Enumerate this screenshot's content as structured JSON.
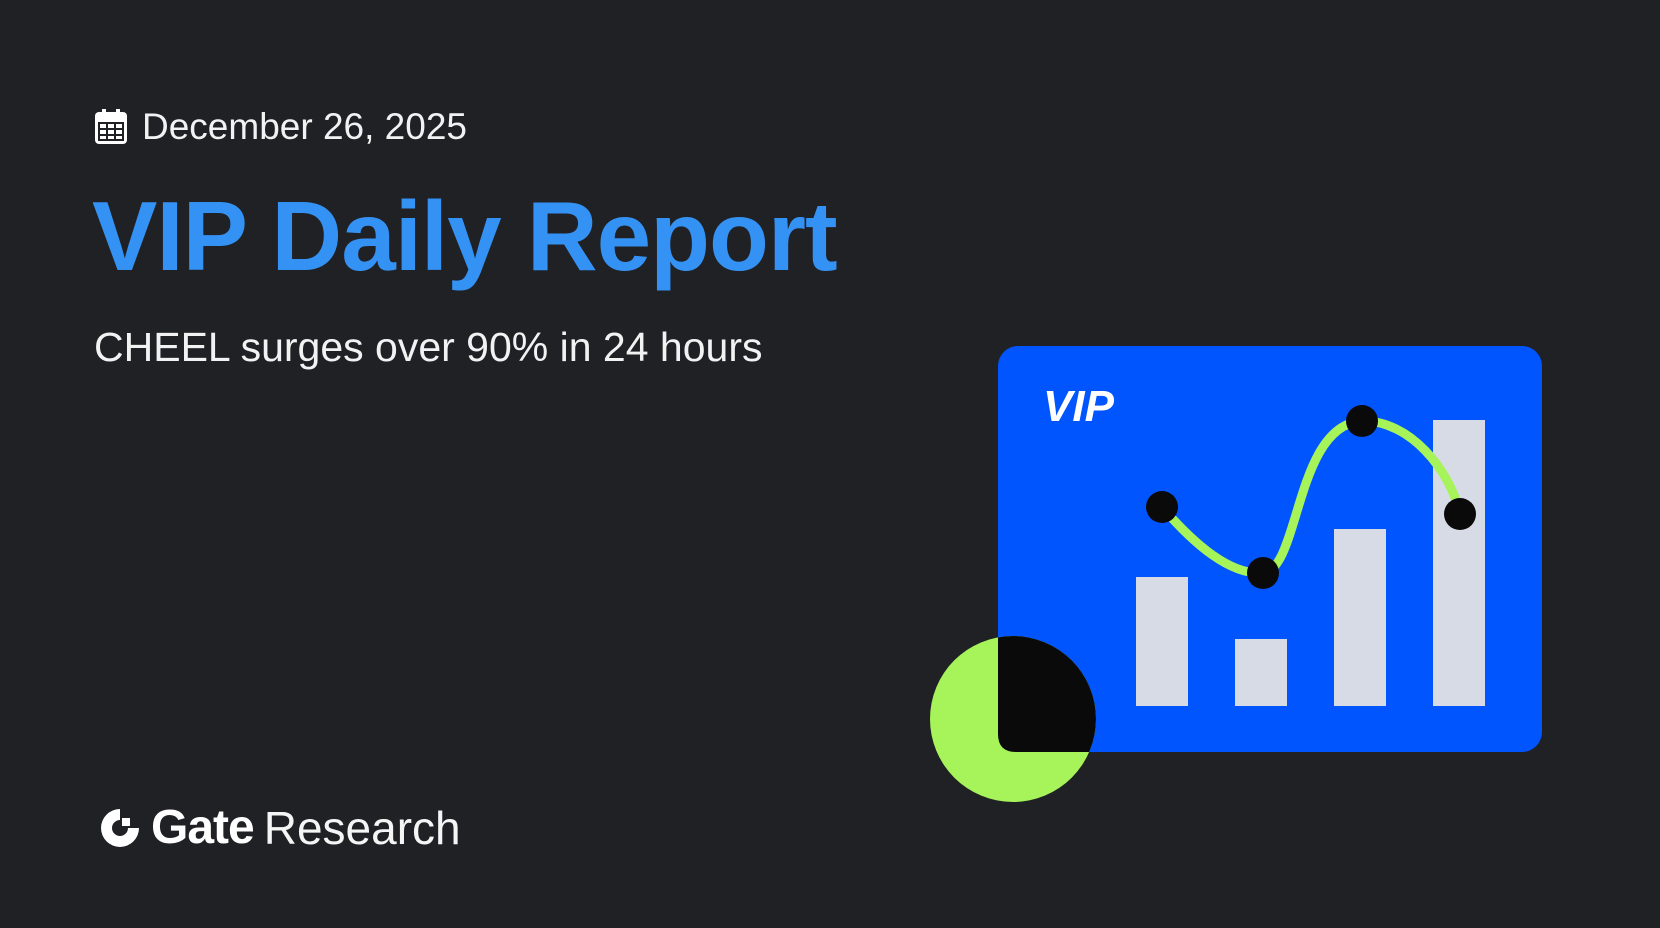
{
  "header": {
    "date": "December 26, 2025",
    "date_icon": "calendar-icon",
    "title": "VIP Daily Report",
    "subtitle": "CHEEL surges over 90% in 24 hours"
  },
  "illustration": {
    "badge": "VIP",
    "colors": {
      "card": "#0055ff",
      "accent": "#a6f35a",
      "bars": "#d7dbe6",
      "dots": "#0a0a0a"
    }
  },
  "brand": {
    "logo": "Gate",
    "suffix": "Research"
  },
  "colors": {
    "background": "#202125",
    "title": "#3592f5"
  }
}
